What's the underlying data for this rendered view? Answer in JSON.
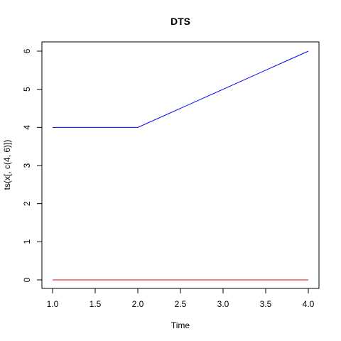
{
  "chart_data": {
    "type": "line",
    "title": "DTS",
    "xlabel": "Time",
    "ylabel": "ts(x[, c(4, 6)])",
    "xlim": [
      1.0,
      4.0
    ],
    "ylim": [
      0,
      6
    ],
    "x_ticks": [
      "1.0",
      "1.5",
      "2.0",
      "2.5",
      "3.0",
      "3.5",
      "4.0"
    ],
    "y_ticks": [
      "0",
      "1",
      "2",
      "3",
      "4",
      "5",
      "6"
    ],
    "grid": false,
    "series": [
      {
        "color": "#ff0000",
        "x": [
          1,
          2,
          3,
          4
        ],
        "values": [
          0,
          0,
          0,
          0
        ]
      },
      {
        "color": "#0000ff",
        "x": [
          1,
          2,
          3,
          4
        ],
        "values": [
          4,
          4,
          5,
          6
        ]
      }
    ]
  }
}
